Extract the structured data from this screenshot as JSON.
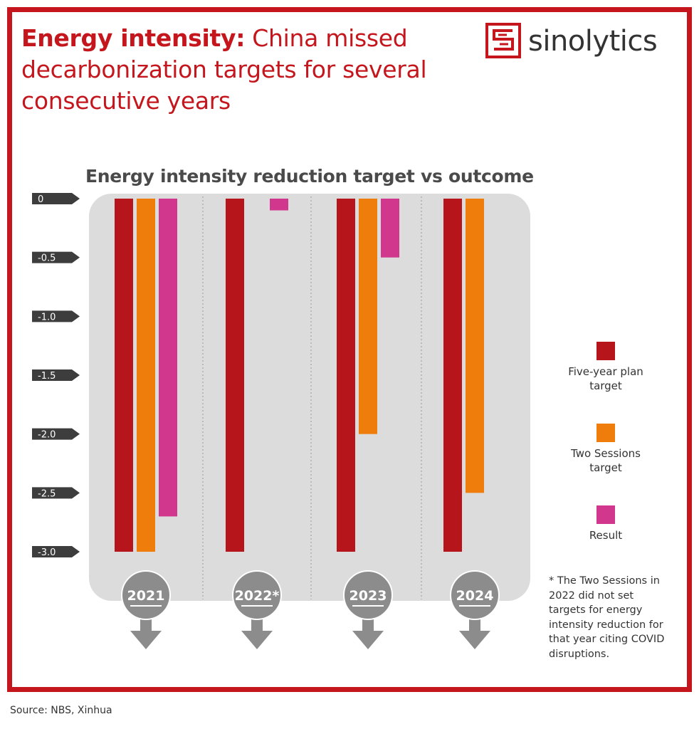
{
  "headline": {
    "strong": "Energy intensity:",
    "rest": " China missed decarbonization targets for several consecutive years"
  },
  "brand": {
    "name": "sinolytics",
    "logo_icon": "s-maze-logo-icon",
    "color": "#c4161c"
  },
  "chart_data": {
    "type": "bar",
    "title": "Energy intensity reduction target vs outcome",
    "categories": [
      "2021",
      "2022*",
      "2023",
      "2024"
    ],
    "series": [
      {
        "name": "Five-year plan target",
        "color": "#b5151b",
        "values": [
          -3.0,
          -3.0,
          -3.0,
          -3.0
        ]
      },
      {
        "name": "Two Sessions target",
        "color": "#ef7d0b",
        "values": [
          -3.0,
          null,
          -2.0,
          -2.5
        ]
      },
      {
        "name": "Result",
        "color": "#d1378c",
        "values": [
          -2.7,
          -0.1,
          -0.5,
          null
        ]
      }
    ],
    "yticks": [
      "0",
      "-0.5",
      "-1.0",
      "-1.5",
      "-2.0",
      "-2.5",
      "-3.0"
    ],
    "ytick_values": [
      0,
      -0.5,
      -1.0,
      -1.5,
      -2.0,
      -2.5,
      -3.0
    ],
    "ylim": [
      -3.0,
      0
    ],
    "grid": false,
    "legend_position": "right",
    "colors": {
      "panel": "#dcdcdc",
      "badge": "#8c8c8c",
      "tick_tag": "#3d3d3d",
      "separator": "#9a9a9a"
    }
  },
  "legend": {
    "items": [
      {
        "line1": "Five-year plan",
        "line2": "target",
        "color": "#b5151b"
      },
      {
        "line1": "Two Sessions",
        "line2": "target",
        "color": "#ef7d0b"
      },
      {
        "line1": "Result",
        "line2": "",
        "color": "#d1378c"
      }
    ]
  },
  "footnote": "* The Two Sessions in 2022 did not set targets for energy intensity reduction for that year citing COVID disruptions.",
  "source": "Source: NBS, Xinhua"
}
